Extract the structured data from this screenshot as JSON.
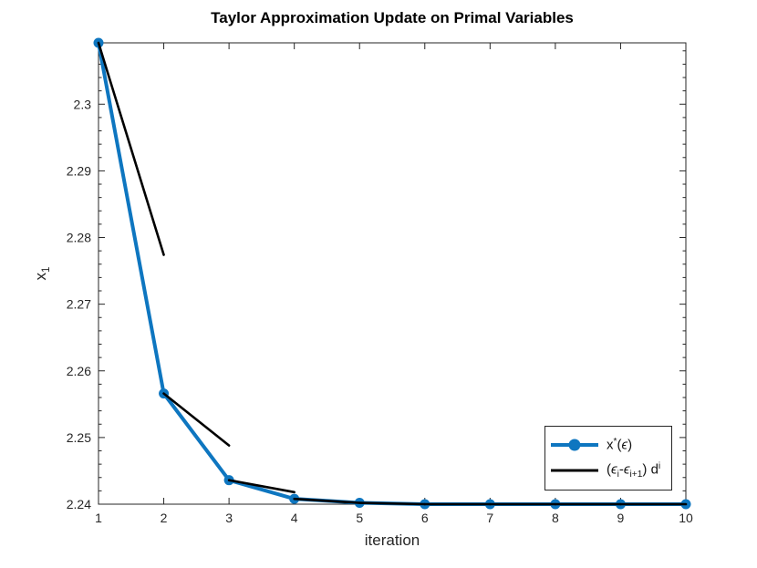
{
  "figure": {
    "background": "#ffffff"
  },
  "colors": {
    "primal_blue": "#0e76c0",
    "taylor_black": "#000000",
    "axis": "#262626",
    "tick_label": "#262626",
    "title_text": "#000000",
    "legend_border": "#262626",
    "legend_background": "#ffffff"
  },
  "chart_data": {
    "type": "line",
    "title": "Taylor Approximation Update on Primal Variables",
    "xlabel": "iteration",
    "ylabel_parts": [
      {
        "text": "x"
      },
      {
        "text": "1",
        "style": "sub"
      }
    ],
    "xlim": [
      1,
      10
    ],
    "ylim": [
      2.24,
      2.3092
    ],
    "x_ticks": [
      1,
      2,
      3,
      4,
      5,
      6,
      7,
      8,
      9,
      10
    ],
    "x_tick_labels": [
      "1",
      "2",
      "3",
      "4",
      "5",
      "6",
      "7",
      "8",
      "9",
      "10"
    ],
    "y_ticks": [
      2.24,
      2.25,
      2.26,
      2.27,
      2.28,
      2.29,
      2.3
    ],
    "y_tick_labels": [
      "2.24",
      "2.25",
      "2.26",
      "2.27",
      "2.28",
      "2.29",
      "2.3"
    ],
    "y_minor_step": 0.002,
    "grid": false,
    "box": true,
    "tick_dir": "in",
    "legend_position": "lower-right",
    "series": [
      {
        "name": "primal-solution",
        "style": "line-markers",
        "color": "#0e76c0",
        "line_width": 4,
        "marker": "circle",
        "marker_diameter": 11,
        "x": [
          1,
          2,
          3,
          4,
          5,
          6,
          7,
          8,
          9,
          10
        ],
        "y": [
          2.3092,
          2.2566,
          2.2436,
          2.2408,
          2.2402,
          2.24,
          2.24,
          2.24,
          2.24,
          2.24
        ],
        "legend_parts": [
          {
            "text": "x"
          },
          {
            "text": "*",
            "style": "sup"
          },
          {
            "text": "("
          },
          {
            "text": "ϵ",
            "style": "it"
          },
          {
            "text": ")"
          }
        ]
      },
      {
        "name": "taylor-update",
        "style": "segments",
        "color": "#000000",
        "line_width": 2.6,
        "segments": [
          {
            "x": [
              1,
              2
            ],
            "y": [
              2.3092,
              2.2774
            ]
          },
          {
            "x": [
              2,
              3
            ],
            "y": [
              2.2566,
              2.2488
            ]
          },
          {
            "x": [
              3,
              4
            ],
            "y": [
              2.2436,
              2.2418
            ]
          },
          {
            "x": [
              4,
              5
            ],
            "y": [
              2.2408,
              2.2402
            ]
          },
          {
            "x": [
              5,
              6
            ],
            "y": [
              2.2402,
              2.24
            ]
          },
          {
            "x": [
              6,
              7
            ],
            "y": [
              2.24,
              2.24
            ]
          },
          {
            "x": [
              7,
              8
            ],
            "y": [
              2.24,
              2.24
            ]
          },
          {
            "x": [
              8,
              9
            ],
            "y": [
              2.24,
              2.24
            ]
          },
          {
            "x": [
              9,
              10
            ],
            "y": [
              2.24,
              2.24
            ]
          }
        ],
        "legend_parts": [
          {
            "text": "("
          },
          {
            "text": "ϵ",
            "style": "it"
          },
          {
            "text": "i",
            "style": "sub"
          },
          {
            "text": "-"
          },
          {
            "text": "ϵ",
            "style": "it"
          },
          {
            "text": "i+1",
            "style": "sub"
          },
          {
            "text": ") d"
          },
          {
            "text": "i",
            "style": "sup"
          }
        ]
      }
    ]
  }
}
